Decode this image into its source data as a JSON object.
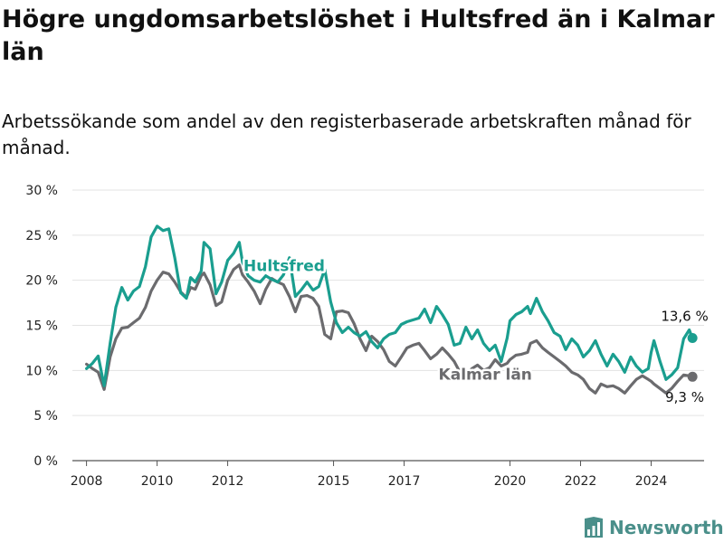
{
  "header": {
    "title": "Högre ungdomsarbetslöshet i Hultsfred än i Kalmar län",
    "subtitle": "Arbetssökande som andel av den registerbaserade arbetskraften månad för månad."
  },
  "brand": {
    "name": "Newsworthy",
    "icon": "newsworthy-logo-icon"
  },
  "chart_data": {
    "type": "line",
    "title": "Högre ungdomsarbetslöshet i Hultsfred än i Kalmar län",
    "subtitle": "Arbetssökande som andel av den registerbaserade arbetskraften månad för månad.",
    "xlim": [
      2007.6,
      2025.5
    ],
    "ylim": [
      0,
      30
    ],
    "yticks": [
      0,
      5,
      10,
      15,
      20,
      25,
      30
    ],
    "ytick_labels": [
      "0 %",
      "5 %",
      "10 %",
      "15 %",
      "20 %",
      "25 %",
      "30 %"
    ],
    "xticks": [
      2008,
      2010,
      2012,
      2015,
      2017,
      2020,
      2022,
      2024
    ],
    "xtick_labels": [
      "2008",
      "2010",
      "2012",
      "2015",
      "2017",
      "2020",
      "2022",
      "2024"
    ],
    "grid": "horizontal",
    "series": [
      {
        "name": "Hultsfred",
        "color": "#1a9e8f",
        "end_label": "13,6 %",
        "points": [
          [
            2008.0,
            10.2
          ],
          [
            2008.17,
            10.8
          ],
          [
            2008.33,
            11.6
          ],
          [
            2008.5,
            8.3
          ],
          [
            2008.67,
            13.0
          ],
          [
            2008.83,
            17.0
          ],
          [
            2009.0,
            19.2
          ],
          [
            2009.17,
            17.8
          ],
          [
            2009.33,
            18.8
          ],
          [
            2009.5,
            19.3
          ],
          [
            2009.67,
            21.5
          ],
          [
            2009.83,
            24.8
          ],
          [
            2010.0,
            26.0
          ],
          [
            2010.17,
            25.5
          ],
          [
            2010.33,
            25.7
          ],
          [
            2010.5,
            22.5
          ],
          [
            2010.67,
            18.6
          ],
          [
            2010.83,
            18.0
          ],
          [
            2010.95,
            20.3
          ],
          [
            2011.08,
            19.8
          ],
          [
            2011.25,
            21.0
          ],
          [
            2011.33,
            24.2
          ],
          [
            2011.5,
            23.5
          ],
          [
            2011.67,
            18.5
          ],
          [
            2011.83,
            19.8
          ],
          [
            2012.0,
            22.2
          ],
          [
            2012.17,
            23.0
          ],
          [
            2012.33,
            24.2
          ],
          [
            2012.42,
            22.0
          ],
          [
            2012.58,
            20.5
          ],
          [
            2012.75,
            20.0
          ],
          [
            2012.92,
            19.8
          ],
          [
            2013.08,
            20.5
          ],
          [
            2013.25,
            20.1
          ],
          [
            2013.42,
            19.8
          ],
          [
            2013.58,
            20.6
          ],
          [
            2013.75,
            22.5
          ],
          [
            2013.92,
            18.2
          ],
          [
            2014.08,
            18.9
          ],
          [
            2014.25,
            19.8
          ],
          [
            2014.42,
            18.9
          ],
          [
            2014.58,
            19.3
          ],
          [
            2014.75,
            21.2
          ],
          [
            2014.92,
            17.6
          ],
          [
            2015.08,
            15.3
          ],
          [
            2015.25,
            14.2
          ],
          [
            2015.42,
            14.8
          ],
          [
            2015.58,
            14.2
          ],
          [
            2015.75,
            13.8
          ],
          [
            2015.92,
            14.3
          ],
          [
            2016.08,
            13.2
          ],
          [
            2016.25,
            12.5
          ],
          [
            2016.42,
            13.5
          ],
          [
            2016.58,
            14.0
          ],
          [
            2016.75,
            14.2
          ],
          [
            2016.92,
            15.1
          ],
          [
            2017.08,
            15.4
          ],
          [
            2017.25,
            15.6
          ],
          [
            2017.42,
            15.8
          ],
          [
            2017.58,
            16.8
          ],
          [
            2017.75,
            15.3
          ],
          [
            2017.92,
            17.1
          ],
          [
            2018.08,
            16.2
          ],
          [
            2018.25,
            15.1
          ],
          [
            2018.42,
            12.8
          ],
          [
            2018.58,
            13.0
          ],
          [
            2018.75,
            14.8
          ],
          [
            2018.92,
            13.5
          ],
          [
            2019.08,
            14.5
          ],
          [
            2019.25,
            13.0
          ],
          [
            2019.42,
            12.2
          ],
          [
            2019.58,
            12.8
          ],
          [
            2019.75,
            11.0
          ],
          [
            2019.92,
            13.6
          ],
          [
            2020.0,
            15.5
          ],
          [
            2020.17,
            16.2
          ],
          [
            2020.33,
            16.5
          ],
          [
            2020.5,
            17.1
          ],
          [
            2020.58,
            16.3
          ],
          [
            2020.75,
            18.0
          ],
          [
            2020.92,
            16.5
          ],
          [
            2021.08,
            15.5
          ],
          [
            2021.25,
            14.2
          ],
          [
            2021.42,
            13.8
          ],
          [
            2021.58,
            12.3
          ],
          [
            2021.75,
            13.5
          ],
          [
            2021.92,
            12.8
          ],
          [
            2022.08,
            11.5
          ],
          [
            2022.25,
            12.2
          ],
          [
            2022.42,
            13.3
          ],
          [
            2022.58,
            11.8
          ],
          [
            2022.75,
            10.5
          ],
          [
            2022.92,
            11.8
          ],
          [
            2023.08,
            11.0
          ],
          [
            2023.25,
            9.8
          ],
          [
            2023.42,
            11.5
          ],
          [
            2023.58,
            10.5
          ],
          [
            2023.75,
            9.8
          ],
          [
            2023.92,
            10.2
          ],
          [
            2024.0,
            12.0
          ],
          [
            2024.08,
            13.3
          ],
          [
            2024.25,
            11.0
          ],
          [
            2024.42,
            9.0
          ],
          [
            2024.58,
            9.5
          ],
          [
            2024.75,
            10.3
          ],
          [
            2024.92,
            13.5
          ],
          [
            2025.08,
            14.5
          ],
          [
            2025.17,
            13.6
          ]
        ]
      },
      {
        "name": "Kalmar län",
        "color": "#6b6b6e",
        "end_label": "9,3 %",
        "points": [
          [
            2008.0,
            10.7
          ],
          [
            2008.17,
            10.2
          ],
          [
            2008.33,
            9.8
          ],
          [
            2008.5,
            7.9
          ],
          [
            2008.67,
            11.5
          ],
          [
            2008.83,
            13.5
          ],
          [
            2009.0,
            14.7
          ],
          [
            2009.17,
            14.8
          ],
          [
            2009.33,
            15.3
          ],
          [
            2009.5,
            15.8
          ],
          [
            2009.67,
            17.0
          ],
          [
            2009.83,
            18.8
          ],
          [
            2010.0,
            20.0
          ],
          [
            2010.17,
            20.9
          ],
          [
            2010.33,
            20.7
          ],
          [
            2010.5,
            19.8
          ],
          [
            2010.67,
            18.7
          ],
          [
            2010.83,
            18.1
          ],
          [
            2010.95,
            19.2
          ],
          [
            2011.08,
            19.0
          ],
          [
            2011.25,
            20.5
          ],
          [
            2011.33,
            20.8
          ],
          [
            2011.5,
            19.5
          ],
          [
            2011.67,
            17.2
          ],
          [
            2011.83,
            17.6
          ],
          [
            2012.0,
            20.0
          ],
          [
            2012.17,
            21.2
          ],
          [
            2012.33,
            21.7
          ],
          [
            2012.42,
            20.6
          ],
          [
            2012.58,
            19.8
          ],
          [
            2012.75,
            18.8
          ],
          [
            2012.92,
            17.4
          ],
          [
            2013.08,
            19.0
          ],
          [
            2013.25,
            20.2
          ],
          [
            2013.42,
            19.8
          ],
          [
            2013.58,
            19.5
          ],
          [
            2013.75,
            18.2
          ],
          [
            2013.92,
            16.5
          ],
          [
            2014.08,
            18.2
          ],
          [
            2014.25,
            18.3
          ],
          [
            2014.42,
            18.0
          ],
          [
            2014.58,
            17.1
          ],
          [
            2014.75,
            14.0
          ],
          [
            2014.92,
            13.5
          ],
          [
            2015.08,
            16.5
          ],
          [
            2015.25,
            16.6
          ],
          [
            2015.42,
            16.4
          ],
          [
            2015.58,
            15.2
          ],
          [
            2015.75,
            13.5
          ],
          [
            2015.92,
            12.2
          ],
          [
            2016.08,
            13.8
          ],
          [
            2016.25,
            13.2
          ],
          [
            2016.42,
            12.3
          ],
          [
            2016.58,
            11.0
          ],
          [
            2016.75,
            10.5
          ],
          [
            2016.92,
            11.5
          ],
          [
            2017.08,
            12.5
          ],
          [
            2017.25,
            12.8
          ],
          [
            2017.42,
            13.0
          ],
          [
            2017.58,
            12.2
          ],
          [
            2017.75,
            11.3
          ],
          [
            2017.92,
            11.8
          ],
          [
            2018.08,
            12.5
          ],
          [
            2018.25,
            11.8
          ],
          [
            2018.42,
            11.0
          ],
          [
            2018.58,
            9.8
          ],
          [
            2018.75,
            9.5
          ],
          [
            2018.92,
            10.2
          ],
          [
            2019.08,
            10.6
          ],
          [
            2019.25,
            10.0
          ],
          [
            2019.42,
            10.3
          ],
          [
            2019.58,
            11.2
          ],
          [
            2019.75,
            10.5
          ],
          [
            2019.92,
            10.8
          ],
          [
            2020.0,
            11.2
          ],
          [
            2020.17,
            11.7
          ],
          [
            2020.33,
            11.8
          ],
          [
            2020.5,
            12.0
          ],
          [
            2020.58,
            13.0
          ],
          [
            2020.75,
            13.3
          ],
          [
            2020.92,
            12.5
          ],
          [
            2021.08,
            12.0
          ],
          [
            2021.25,
            11.5
          ],
          [
            2021.42,
            11.0
          ],
          [
            2021.58,
            10.5
          ],
          [
            2021.75,
            9.8
          ],
          [
            2021.92,
            9.5
          ],
          [
            2022.08,
            9.0
          ],
          [
            2022.25,
            8.0
          ],
          [
            2022.42,
            7.5
          ],
          [
            2022.58,
            8.5
          ],
          [
            2022.75,
            8.2
          ],
          [
            2022.92,
            8.3
          ],
          [
            2023.08,
            8.0
          ],
          [
            2023.25,
            7.5
          ],
          [
            2023.42,
            8.3
          ],
          [
            2023.58,
            9.0
          ],
          [
            2023.75,
            9.4
          ],
          [
            2023.92,
            9.0
          ],
          [
            2024.0,
            8.8
          ],
          [
            2024.08,
            8.5
          ],
          [
            2024.25,
            8.0
          ],
          [
            2024.42,
            7.5
          ],
          [
            2024.58,
            8.0
          ],
          [
            2024.75,
            8.8
          ],
          [
            2024.92,
            9.5
          ],
          [
            2025.08,
            9.4
          ],
          [
            2025.17,
            9.3
          ]
        ]
      }
    ]
  }
}
